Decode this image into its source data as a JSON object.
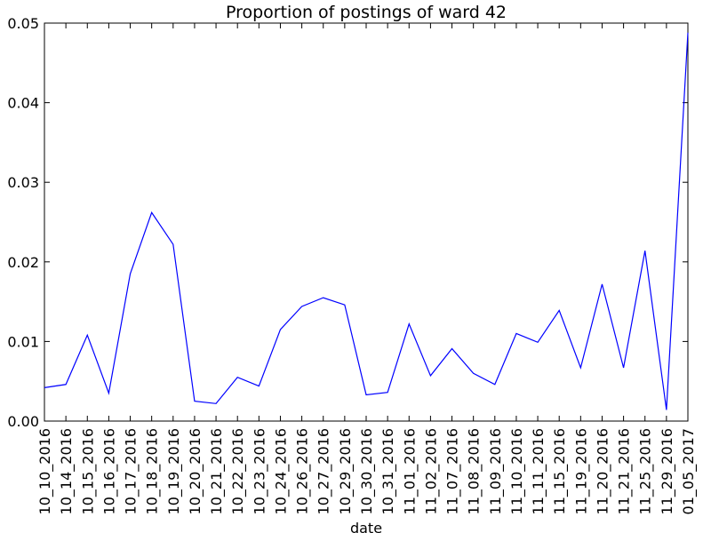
{
  "chart_data": {
    "type": "line",
    "title": "Proportion of postings of ward 42",
    "xlabel": "date",
    "ylabel": "",
    "ylim": [
      0,
      0.05
    ],
    "yticks": [
      "0.00",
      "0.01",
      "0.02",
      "0.03",
      "0.04",
      "0.05"
    ],
    "grid": false,
    "legend": "none",
    "line_color": "#0000ff",
    "categories": [
      "10_10_2016",
      "10_14_2016",
      "10_15_2016",
      "10_16_2016",
      "10_17_2016",
      "10_18_2016",
      "10_19_2016",
      "10_20_2016",
      "10_21_2016",
      "10_22_2016",
      "10_23_2016",
      "10_24_2016",
      "10_26_2016",
      "10_27_2016",
      "10_29_2016",
      "10_30_2016",
      "10_31_2016",
      "11_01_2016",
      "11_02_2016",
      "11_07_2016",
      "11_08_2016",
      "11_09_2016",
      "11_10_2016",
      "11_11_2016",
      "11_15_2016",
      "11_19_2016",
      "11_20_2016",
      "11_21_2016",
      "11_25_2016",
      "11_29_2016",
      "01_05_2017"
    ],
    "values": [
      0.0042,
      0.0046,
      0.0108,
      0.0035,
      0.0185,
      0.0262,
      0.0222,
      0.0025,
      0.0022,
      0.0055,
      0.0044,
      0.0115,
      0.0144,
      0.0155,
      0.0146,
      0.0033,
      0.0036,
      0.0122,
      0.0057,
      0.0091,
      0.006,
      0.0046,
      0.011,
      0.0099,
      0.0139,
      0.0067,
      0.0172,
      0.0067,
      0.0214,
      0.0014,
      0.0488
    ]
  }
}
